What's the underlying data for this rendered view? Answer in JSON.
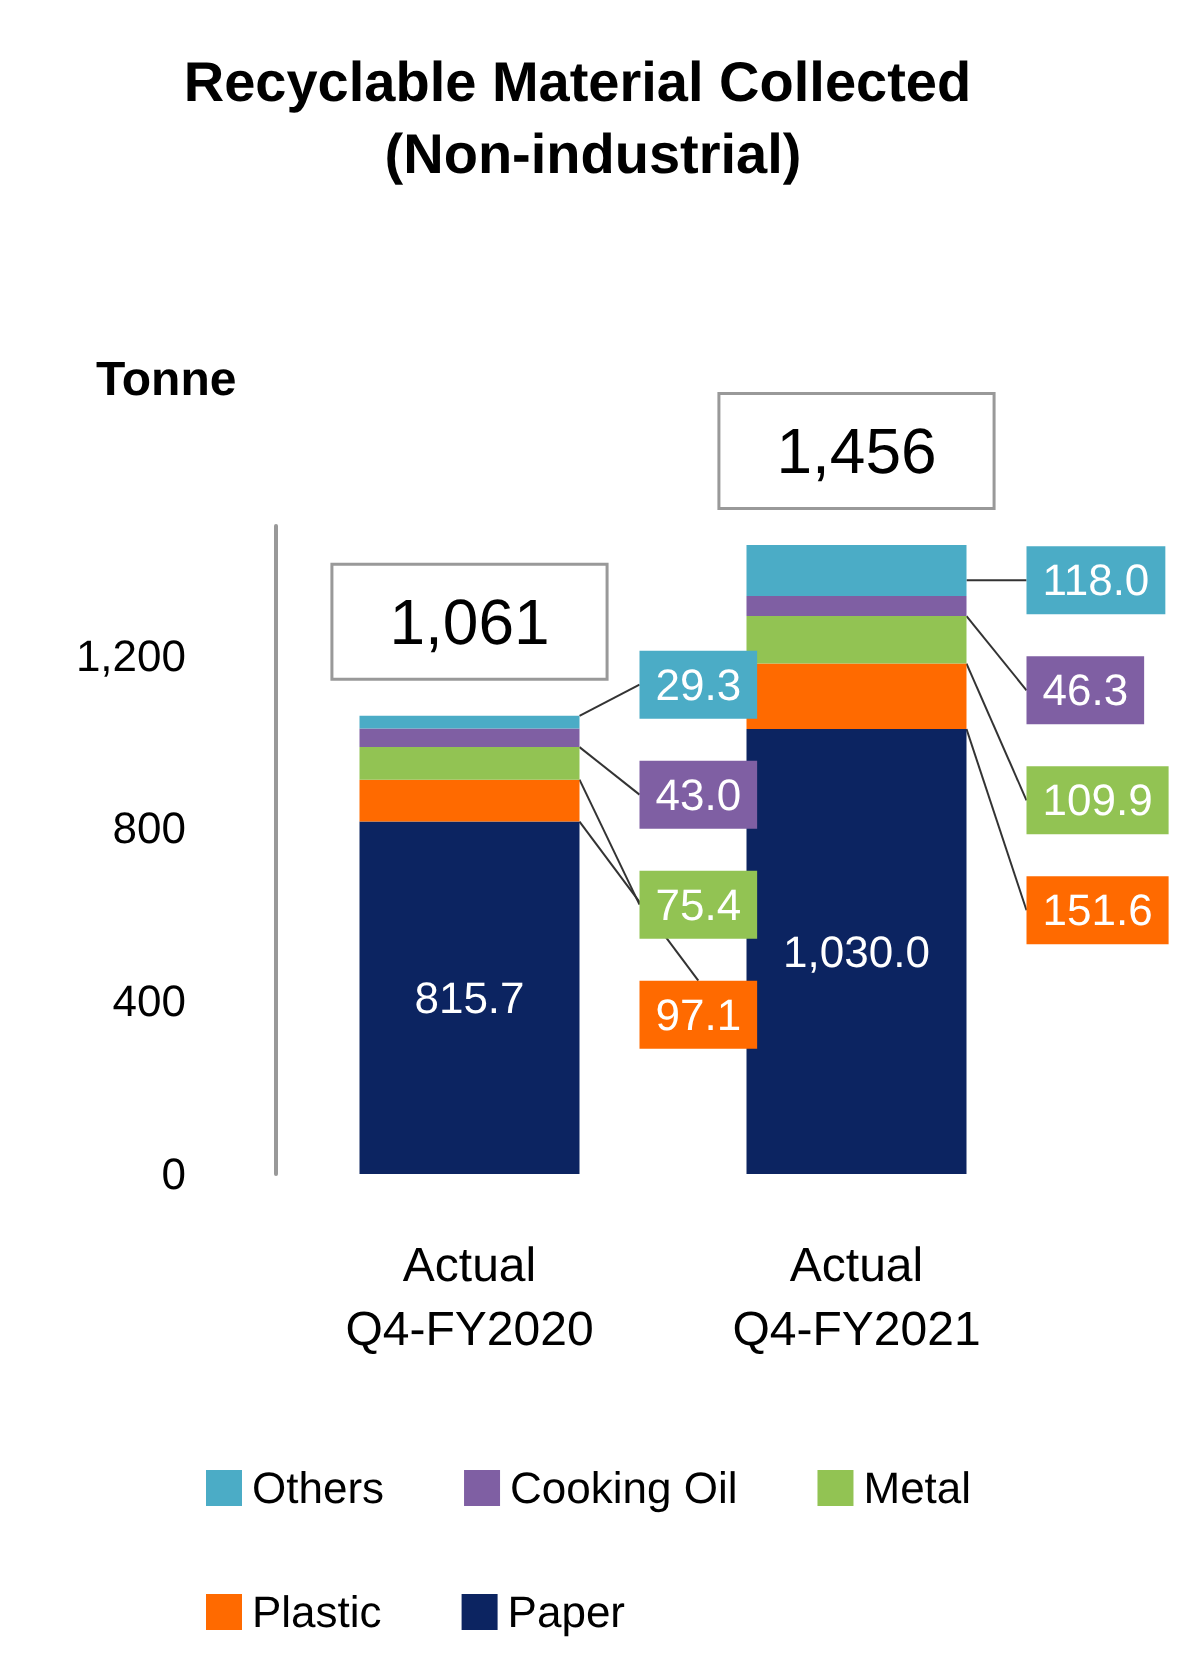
{
  "chart_data": {
    "type": "bar",
    "title": "Recyclable Material Collected  (Non-industrial)",
    "ylabel": "Tonne",
    "categories": [
      "Actual\nQ4-FY2020",
      "Actual\nQ4-FY2021"
    ],
    "stacked": true,
    "series": [
      {
        "name": "Paper",
        "color": "#0c2461",
        "values": [
          815.7,
          1030.0
        ],
        "value_labels": [
          "815.7",
          "1,030.0"
        ]
      },
      {
        "name": "Plastic",
        "color": "#ff6a00",
        "values": [
          97.1,
          151.6
        ],
        "value_labels": [
          "97.1",
          "151.6"
        ]
      },
      {
        "name": "Metal",
        "color": "#92c353",
        "values": [
          75.4,
          109.9
        ],
        "value_labels": [
          "75.4",
          "109.9"
        ]
      },
      {
        "name": "Cooking Oil",
        "color": "#7f5fa3",
        "values": [
          43.0,
          46.3
        ],
        "value_labels": [
          "43.0",
          "46.3"
        ]
      },
      {
        "name": "Others",
        "color": "#4bacc6",
        "values": [
          29.3,
          118.0
        ],
        "value_labels": [
          "29.3",
          "118.0"
        ]
      }
    ],
    "totals": [
      "1,061",
      "1,456"
    ],
    "ylim": [
      0,
      1500
    ],
    "yticks": [
      0,
      400,
      800,
      {
        "value": 1200,
        "label": "1,200"
      }
    ],
    "grid": false,
    "legend": "bottom"
  }
}
